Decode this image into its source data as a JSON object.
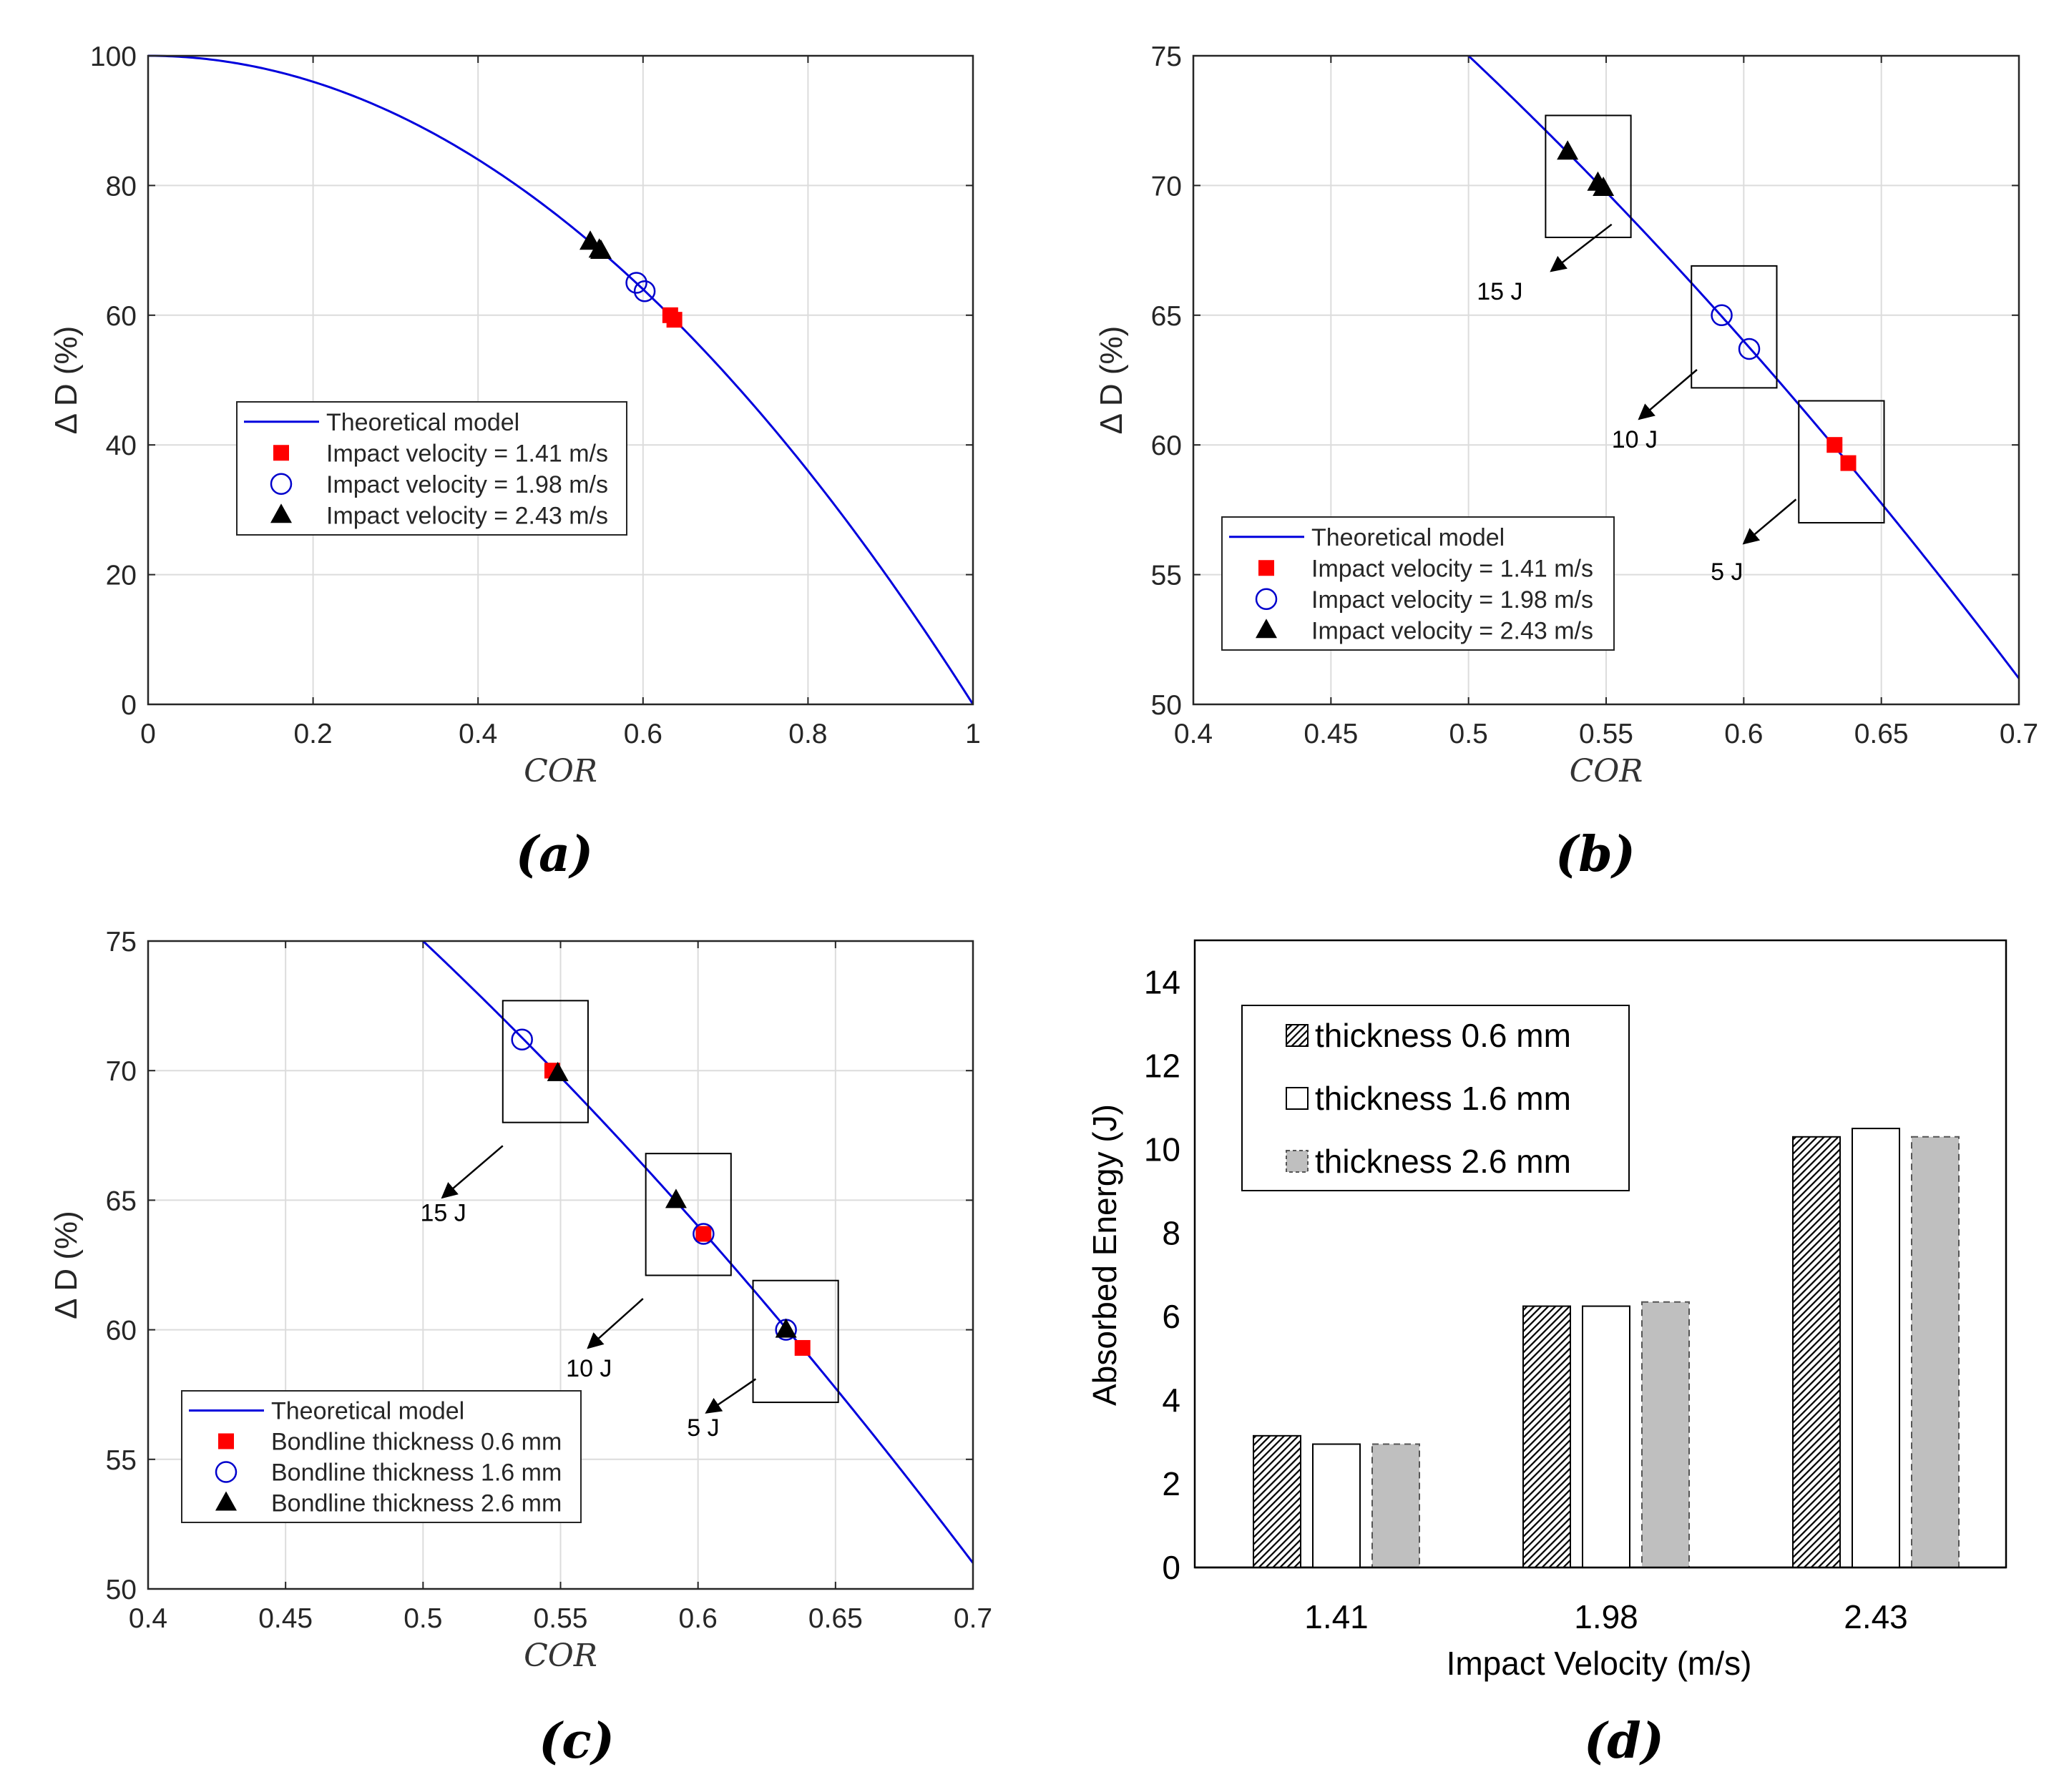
{
  "colors": {
    "model": "#0000dd",
    "square": "#ff0000",
    "circle": "#0000cc",
    "triangle": "#000000",
    "grid": "#dcdcdc",
    "bar_gray": "#bfbfbf"
  },
  "panel_labels": [
    "(a)",
    "(b)",
    "(c)",
    "(d)"
  ],
  "chart_data": [
    {
      "type": "line+scatter",
      "panel": "(a)",
      "xlabel": "COR",
      "ylabel": "Δ D (%)",
      "xlim": [
        0,
        1
      ],
      "ylim": [
        0,
        100
      ],
      "xticks": [
        0,
        0.2,
        0.4,
        0.6,
        0.8,
        1
      ],
      "xtick_labels": [
        "0",
        "0.2",
        "0.4",
        "0.6",
        "0.8",
        "1"
      ],
      "yticks": [
        0,
        20,
        40,
        60,
        80,
        100
      ],
      "ytick_labels": [
        "0",
        "20",
        "40",
        "60",
        "80",
        "100"
      ],
      "grid": true,
      "model": {
        "name": "Theoretical  model",
        "formula": "100*(1-COR^2)",
        "x_range": [
          0,
          1
        ]
      },
      "series": [
        {
          "name": "Impact velocity = 1.41 m/s",
          "marker": "square",
          "x": [
            0.633,
            0.638
          ],
          "y": [
            60.0,
            59.3
          ]
        },
        {
          "name": "Impact velocity = 1.98 m/s",
          "marker": "circle",
          "x": [
            0.592,
            0.602
          ],
          "y": [
            65.0,
            63.7
          ]
        },
        {
          "name": "Impact velocity = 2.43 m/s",
          "marker": "triangle",
          "x": [
            0.536,
            0.547,
            0.549
          ],
          "y": [
            71.3,
            70.1,
            69.9
          ]
        }
      ],
      "legend_position": "center-left",
      "annotations": []
    },
    {
      "type": "line+scatter",
      "panel": "(b)",
      "xlabel": "COR",
      "ylabel": "Δ D (%)",
      "xlim": [
        0.4,
        0.7
      ],
      "ylim": [
        50,
        75
      ],
      "xticks": [
        0.4,
        0.45,
        0.5,
        0.55,
        0.6,
        0.65,
        0.7
      ],
      "xtick_labels": [
        "0.4",
        "0.45",
        "0.5",
        "0.55",
        "0.6",
        "0.65",
        "0.7"
      ],
      "yticks": [
        50,
        55,
        60,
        65,
        70,
        75
      ],
      "ytick_labels": [
        "50",
        "55",
        "60",
        "65",
        "70",
        "75"
      ],
      "grid": true,
      "model": {
        "name": "Theoretical  model",
        "formula": "100*(1-COR^2)",
        "x_range": [
          0.5,
          0.7
        ]
      },
      "series": [
        {
          "name": "Impact velocity = 1.41 m/s",
          "marker": "square",
          "x": [
            0.633,
            0.638
          ],
          "y": [
            60.0,
            59.3
          ]
        },
        {
          "name": "Impact velocity = 1.98 m/s",
          "marker": "circle",
          "x": [
            0.592,
            0.602
          ],
          "y": [
            65.0,
            63.7
          ]
        },
        {
          "name": "Impact velocity = 2.43 m/s",
          "marker": "triangle",
          "x": [
            0.536,
            0.547,
            0.549
          ],
          "y": [
            71.3,
            70.1,
            69.9
          ]
        }
      ],
      "legend_position": "bottom-left",
      "annotations": [
        {
          "text": "15 J",
          "box_x": [
            0.528,
            0.559
          ],
          "box_y": [
            68.0,
            72.7
          ],
          "arrow_from": [
            0.552,
            68.5
          ],
          "arrow_to": [
            0.53,
            66.7
          ],
          "label_at": [
            0.503,
            65.6
          ]
        },
        {
          "text": "10 J",
          "box_x": [
            0.581,
            0.612
          ],
          "box_y": [
            62.2,
            66.9
          ],
          "arrow_from": [
            0.583,
            62.9
          ],
          "arrow_to": [
            0.562,
            61.0
          ],
          "label_at": [
            0.552,
            59.9
          ]
        },
        {
          "text": "5 J",
          "box_x": [
            0.62,
            0.651
          ],
          "box_y": [
            57.0,
            61.7
          ],
          "arrow_from": [
            0.619,
            57.9
          ],
          "arrow_to": [
            0.6,
            56.2
          ],
          "label_at": [
            0.588,
            54.8
          ]
        }
      ]
    },
    {
      "type": "line+scatter",
      "panel": "(c)",
      "xlabel": "COR",
      "ylabel": "Δ D (%)",
      "xlim": [
        0.4,
        0.7
      ],
      "ylim": [
        50,
        75
      ],
      "xticks": [
        0.4,
        0.45,
        0.5,
        0.55,
        0.6,
        0.65,
        0.7
      ],
      "xtick_labels": [
        "0.4",
        "0.45",
        "0.5",
        "0.55",
        "0.6",
        "0.65",
        "0.7"
      ],
      "yticks": [
        50,
        55,
        60,
        65,
        70,
        75
      ],
      "ytick_labels": [
        "50",
        "55",
        "60",
        "65",
        "70",
        "75"
      ],
      "grid": true,
      "model": {
        "name": "Theoretical  model",
        "formula": "100*(1-COR^2)",
        "x_range": [
          0.5,
          0.7
        ]
      },
      "series": [
        {
          "name": "Bondline thickness 0.6 mm",
          "marker": "square",
          "x": [
            0.547,
            0.602,
            0.638
          ],
          "y": [
            70.0,
            63.7,
            59.3
          ]
        },
        {
          "name": "Bondline thickness 1.6 mm",
          "marker": "circle",
          "x": [
            0.536,
            0.602,
            0.632
          ],
          "y": [
            71.2,
            63.7,
            60.0
          ]
        },
        {
          "name": "Bondline thickness 2.6 mm",
          "marker": "triangle",
          "x": [
            0.549,
            0.592,
            0.632
          ],
          "y": [
            69.9,
            65.0,
            60.0
          ]
        }
      ],
      "legend_position": "bottom-left",
      "annotations": [
        {
          "text": "15 J",
          "box_x": [
            0.529,
            0.56
          ],
          "box_y": [
            68.0,
            72.7
          ],
          "arrow_from": [
            0.529,
            67.1
          ],
          "arrow_to": [
            0.507,
            65.1
          ],
          "label_at": [
            0.499,
            64.2
          ]
        },
        {
          "text": "10 J",
          "box_x": [
            0.581,
            0.612
          ],
          "box_y": [
            62.1,
            66.8
          ],
          "arrow_from": [
            0.58,
            61.2
          ],
          "arrow_to": [
            0.56,
            59.3
          ],
          "label_at": [
            0.552,
            58.2
          ]
        },
        {
          "text": "5 J",
          "box_x": [
            0.62,
            0.651
          ],
          "box_y": [
            57.2,
            61.9
          ],
          "arrow_from": [
            0.621,
            58.1
          ],
          "arrow_to": [
            0.603,
            56.8
          ],
          "label_at": [
            0.596,
            55.9
          ]
        }
      ]
    },
    {
      "type": "bar",
      "panel": "(d)",
      "xlabel": "Impact Velocity (m/s)",
      "ylabel": "Absorbed Energy (J)",
      "categories": [
        "1.41",
        "1.98",
        "2.43"
      ],
      "ylim": [
        0,
        15
      ],
      "yticks": [
        0,
        2,
        4,
        6,
        8,
        10,
        12,
        14
      ],
      "ytick_labels": [
        "0",
        "2",
        "4",
        "6",
        "8",
        "10",
        "12",
        "14"
      ],
      "grid": false,
      "series": [
        {
          "name": "thickness 0.6 mm",
          "style": "hatched",
          "values": [
            3.15,
            6.25,
            10.3
          ]
        },
        {
          "name": "thickness 1.6 mm",
          "style": "white",
          "values": [
            2.95,
            6.25,
            10.5
          ]
        },
        {
          "name": "thickness 2.6 mm",
          "style": "gray-dashed",
          "values": [
            2.95,
            6.35,
            10.3
          ]
        }
      ],
      "legend_position": "top-left"
    }
  ]
}
